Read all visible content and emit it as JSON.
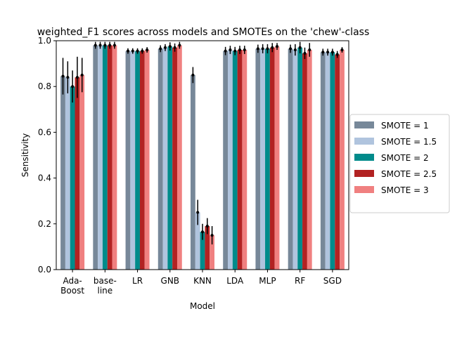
{
  "chart_data": {
    "type": "bar",
    "title": "weighted_F1 scores across models and SMOTEs on the 'chew'-class",
    "xlabel": "Model",
    "ylabel": "Sensitivity",
    "ylim": [
      0,
      1.0
    ],
    "yticks": [
      "0.0",
      "0.2",
      "0.4",
      "0.6",
      "0.8",
      "1.0"
    ],
    "categories": [
      "Ada-\nBoost",
      "base-\nline",
      "LR",
      "GNB",
      "KNN",
      "LDA",
      "MLP",
      "RF",
      "SGD"
    ],
    "legend_position": "right",
    "series": [
      {
        "name": "SMOTE = 1",
        "color": "#778899",
        "values": [
          0.845,
          0.98,
          0.955,
          0.965,
          0.85,
          0.955,
          0.965,
          0.965,
          0.95
        ],
        "errors": [
          0.08,
          0.015,
          0.012,
          0.015,
          0.035,
          0.018,
          0.018,
          0.018,
          0.015
        ]
      },
      {
        "name": "SMOTE = 1.5",
        "color": "#b0c4de",
        "values": [
          0.84,
          0.98,
          0.955,
          0.97,
          0.25,
          0.96,
          0.965,
          0.96,
          0.95
        ],
        "errors": [
          0.07,
          0.015,
          0.012,
          0.015,
          0.055,
          0.018,
          0.02,
          0.025,
          0.015
        ]
      },
      {
        "name": "SMOTE = 2",
        "color": "#008b8b",
        "values": [
          0.8,
          0.98,
          0.955,
          0.975,
          0.165,
          0.955,
          0.965,
          0.97,
          0.95
        ],
        "errors": [
          0.07,
          0.015,
          0.012,
          0.018,
          0.035,
          0.018,
          0.02,
          0.025,
          0.015
        ]
      },
      {
        "name": "SMOTE = 2.5",
        "color": "#b22222",
        "values": [
          0.84,
          0.98,
          0.955,
          0.97,
          0.19,
          0.96,
          0.97,
          0.945,
          0.94
        ],
        "errors": [
          0.09,
          0.015,
          0.012,
          0.018,
          0.035,
          0.018,
          0.02,
          0.025,
          0.015
        ]
      },
      {
        "name": "SMOTE = 3",
        "color": "#f08080",
        "values": [
          0.85,
          0.98,
          0.96,
          0.98,
          0.15,
          0.96,
          0.975,
          0.96,
          0.96
        ],
        "errors": [
          0.075,
          0.015,
          0.012,
          0.015,
          0.04,
          0.018,
          0.015,
          0.03,
          0.012
        ]
      }
    ]
  }
}
